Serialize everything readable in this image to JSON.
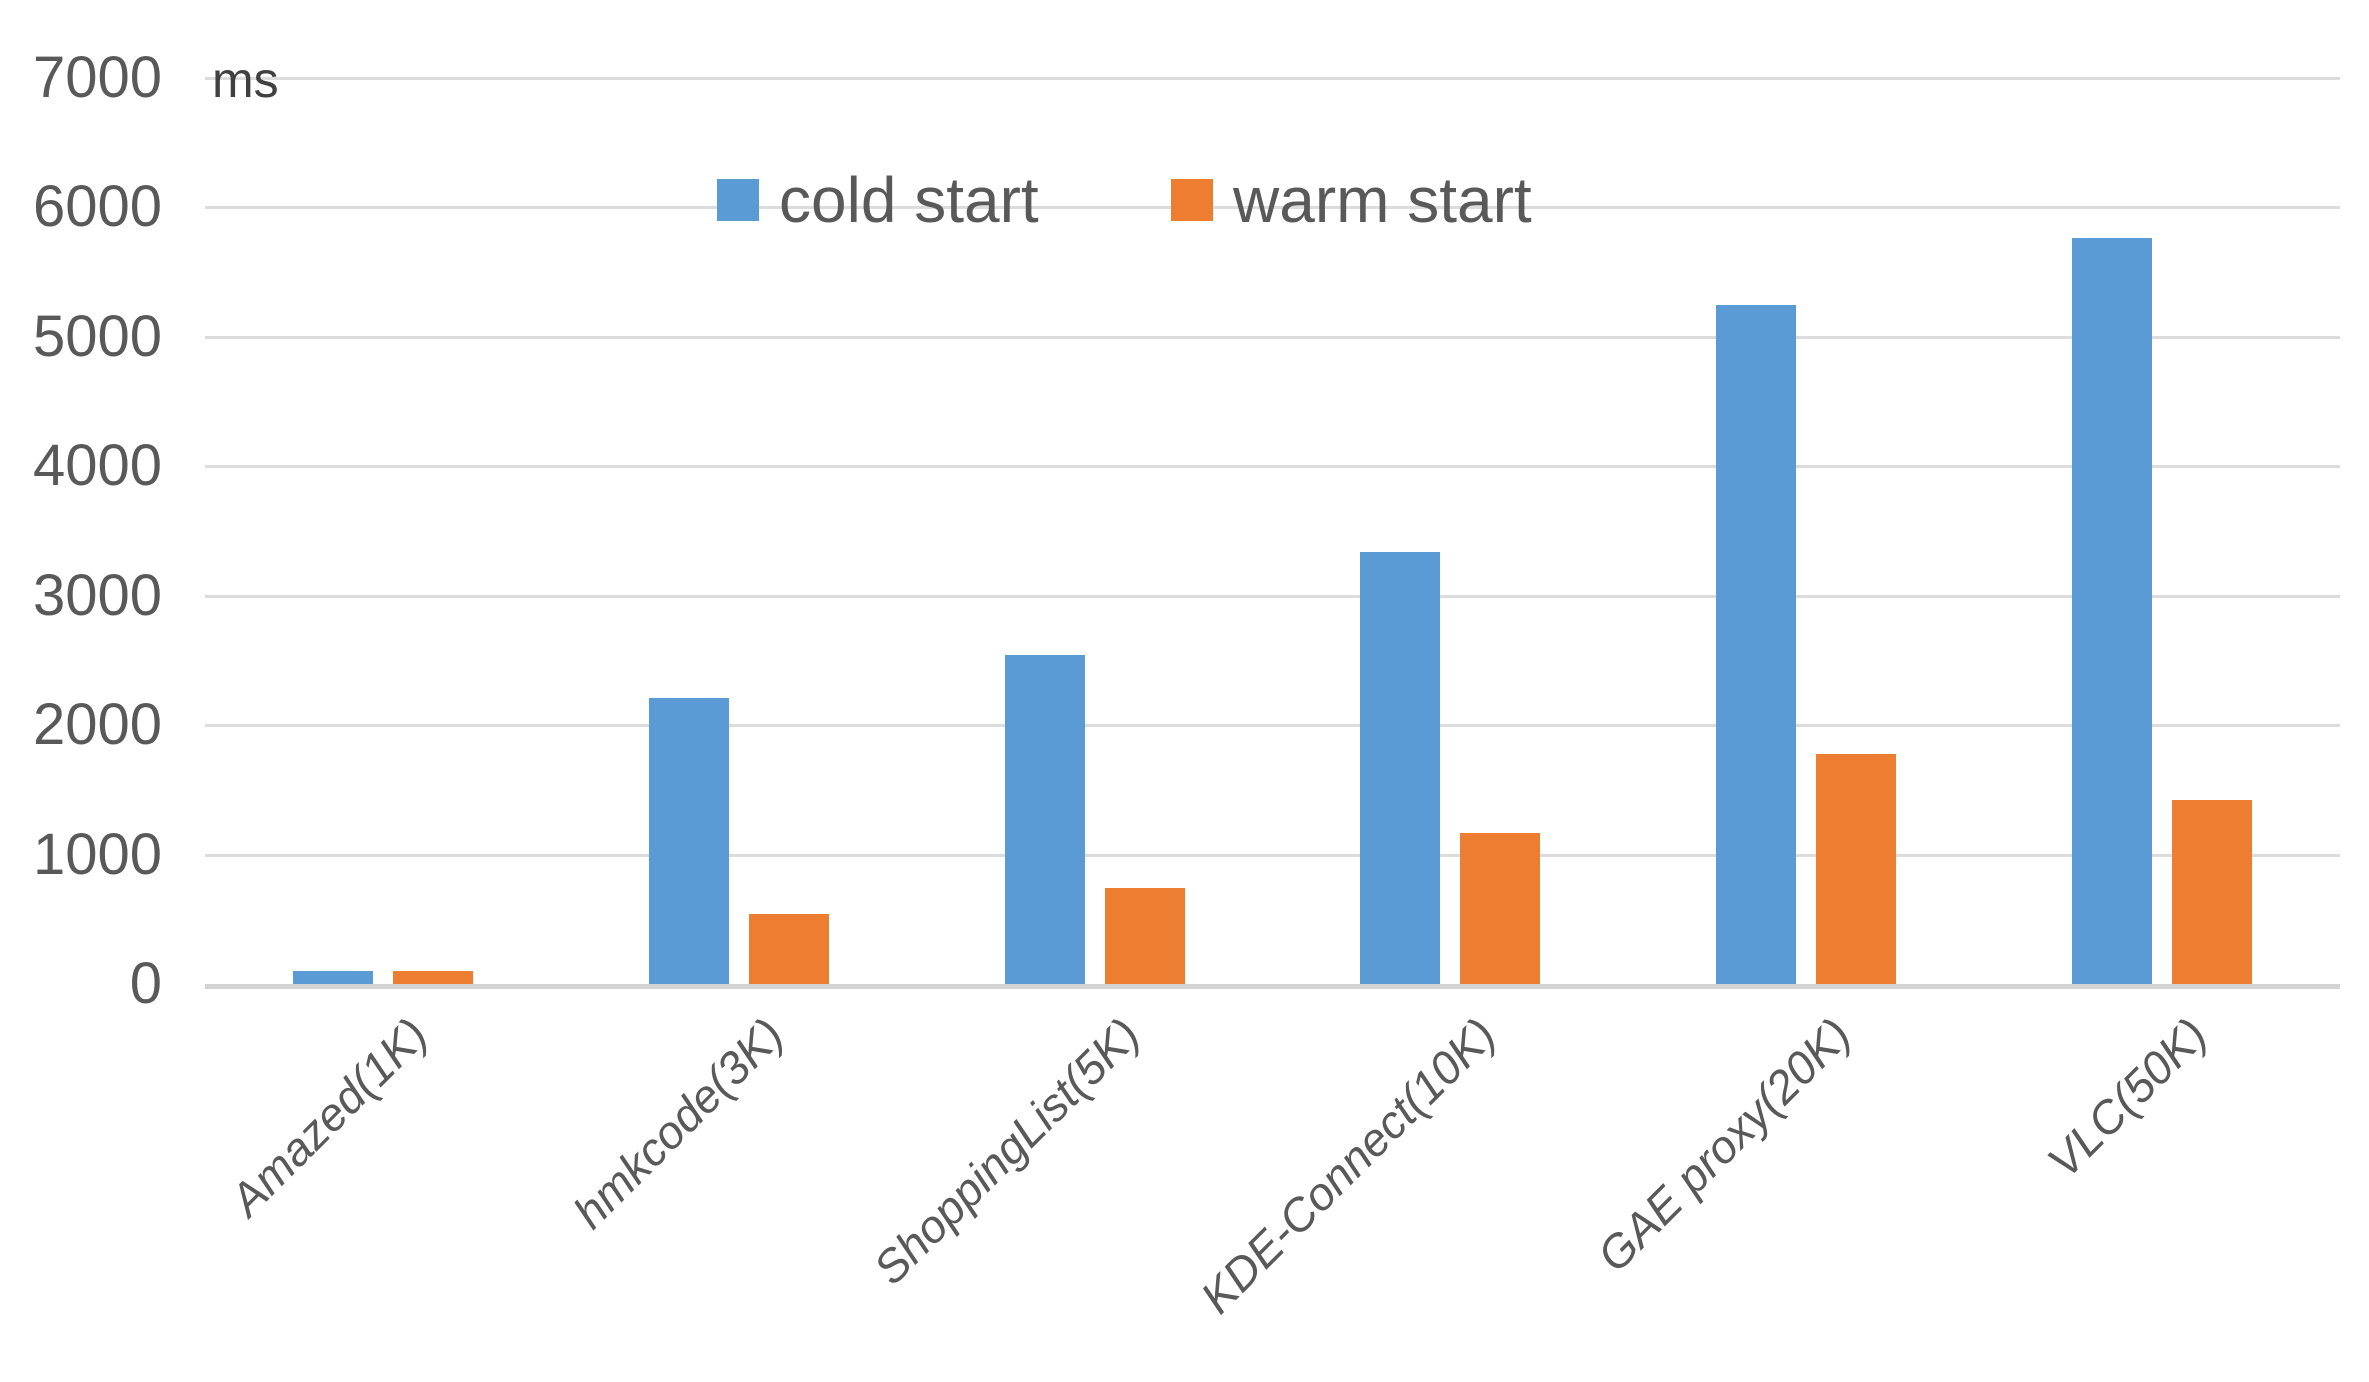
{
  "chart_data": {
    "type": "bar",
    "title": "",
    "unit_label": "ms",
    "categories": [
      "Amazed(1K)",
      "hmkcode(3K)",
      "ShoppingList(5K)",
      "KDE-Connect(10K)",
      "GAE proxy(20K)",
      "VLC(50K)"
    ],
    "series": [
      {
        "name": "cold start",
        "color": "#5B9BD5",
        "values": [
          100,
          2210,
          2540,
          3340,
          5250,
          5760
        ]
      },
      {
        "name": "warm start",
        "color": "#ED7D31",
        "values": [
          100,
          540,
          740,
          1170,
          1780,
          1420
        ]
      }
    ],
    "y_axis": {
      "min": 0,
      "max": 7000,
      "tick_interval": 1000,
      "tick_labels": [
        "0",
        "1000",
        "2000",
        "3000",
        "4000",
        "5000",
        "6000",
        "7000"
      ]
    },
    "x_axis_label_rotation_deg": -45,
    "grid": true,
    "legend_position": "top-center",
    "colors": {
      "gridline": "#DCDCDC",
      "axis_line": "#D3D3D3",
      "text": "#595959",
      "background": "#FFFFFF"
    }
  }
}
